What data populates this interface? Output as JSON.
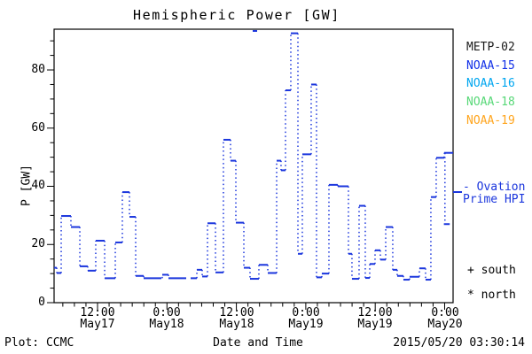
{
  "title": "Hemispheric Power [GW]",
  "colors": {
    "frame": "#000000",
    "curve": "#1b36dd",
    "metp02": "#1a1a1a",
    "noaa15": "#1331e8",
    "noaa16": "#00a6f0",
    "noaa18": "#58d878",
    "noaa19": "#ffa51e"
  },
  "legend": {
    "satellites": [
      {
        "label": "METP-02",
        "color": "#1a1a1a"
      },
      {
        "label": "NOAA-15",
        "color": "#1331e8"
      },
      {
        "label": "NOAA-16",
        "color": "#00a6f0"
      },
      {
        "label": "NOAA-18",
        "color": "#58d878"
      },
      {
        "label": "NOAA-19",
        "color": "#ffa51e"
      }
    ],
    "model_label_lines": [
      "- Ovation",
      "Prime HPI"
    ],
    "model_color": "#1b36dd",
    "hemisphere_markers": [
      {
        "symbol": "+",
        "label": "south"
      },
      {
        "symbol": "*",
        "label": "north"
      }
    ]
  },
  "footer": {
    "left": "Plot: CCMC",
    "xlabel": "Date and Time",
    "timestamp": "2015/05/20 03:30:14"
  },
  "chart_data": {
    "type": "line",
    "subtype": "step (solid horizontal dashes, dotted vertical risers)",
    "title": "Hemispheric Power [GW]",
    "xlabel": "Date and Time",
    "ylabel": "P [GW]",
    "x_unit": "hours since 2015-05-17 00:00 UT",
    "xlim_hours": [
      4.49,
      73.46
    ],
    "ylim": [
      0,
      94
    ],
    "grid": false,
    "legend_position": "right-outside",
    "y_ticks": [
      {
        "v": 0,
        "label": "0"
      },
      {
        "v": 20,
        "label": "20"
      },
      {
        "v": 40,
        "label": "40"
      },
      {
        "v": 60,
        "label": "60"
      },
      {
        "v": 80,
        "label": "80"
      }
    ],
    "y_minor_step": 5,
    "x_minor_step": 2,
    "x_ticks": [
      {
        "h": 12,
        "time": "12:00",
        "date": "May17"
      },
      {
        "h": 24,
        "time": "0:00",
        "date": "May18"
      },
      {
        "h": 36,
        "time": "12:00",
        "date": "May18"
      },
      {
        "h": 48,
        "time": "0:00",
        "date": "May19"
      },
      {
        "h": 60,
        "time": "12:00",
        "date": "May19"
      },
      {
        "h": 72,
        "time": "0:00",
        "date": "May20"
      }
    ],
    "series": [
      {
        "name": "Ovation Prime HPI (blue, NOAA-15 color)",
        "color": "#1b36dd",
        "t_end": 73.46,
        "steps": [
          [
            4.49,
            12
          ],
          [
            4.95,
            10.2
          ],
          [
            5.72,
            29.8
          ],
          [
            7.4,
            26
          ],
          [
            8.94,
            12.5
          ],
          [
            10.31,
            11
          ],
          [
            11.69,
            21.3
          ],
          [
            13.23,
            8.4
          ],
          [
            15.07,
            20.7
          ],
          [
            16.29,
            38
          ],
          [
            17.52,
            29.5
          ],
          [
            18.59,
            9.2
          ],
          [
            19.97,
            8.4
          ],
          [
            23.19,
            9.6
          ],
          [
            24.26,
            8.4
          ],
          [
            29.17,
            11.3
          ],
          [
            30.09,
            9
          ],
          [
            31.01,
            27.3
          ],
          [
            32.39,
            10.4
          ],
          [
            33.76,
            56
          ],
          [
            34.99,
            48.8
          ],
          [
            35.91,
            27.5
          ],
          [
            37.29,
            12
          ],
          [
            38.36,
            8.2
          ],
          [
            39.89,
            13
          ],
          [
            41.43,
            10.2
          ],
          [
            42.96,
            48.8
          ],
          [
            43.72,
            45.5
          ],
          [
            44.49,
            73
          ],
          [
            45.41,
            92.6
          ],
          [
            46.64,
            16.8
          ],
          [
            47.4,
            51
          ],
          [
            48.93,
            75
          ],
          [
            49.85,
            8.7
          ],
          [
            50.77,
            10
          ],
          [
            52.0,
            40.5
          ],
          [
            53.53,
            40
          ],
          [
            55.37,
            16.8
          ],
          [
            55.98,
            8.2
          ],
          [
            57.21,
            33.3
          ],
          [
            58.28,
            8.5
          ],
          [
            59.05,
            13.3
          ],
          [
            59.97,
            18
          ],
          [
            60.89,
            14.8
          ],
          [
            61.81,
            26
          ],
          [
            63.03,
            11.3
          ],
          [
            63.8,
            9.2
          ],
          [
            64.87,
            7.9
          ],
          [
            65.94,
            8.9
          ],
          [
            67.63,
            11.8
          ],
          [
            68.7,
            7.9
          ],
          [
            69.62,
            36.3
          ],
          [
            70.54,
            49.8
          ],
          [
            71.92,
            51.5
          ]
        ],
        "extra_segments": [
          {
            "t0": 71.87,
            "t1": 72.88,
            "v": 27,
            "v_from": 51.5,
            "t_v": 72.05
          },
          {
            "t0": 38.82,
            "t1": 39.59,
            "v": 93.4
          }
        ]
      }
    ]
  }
}
